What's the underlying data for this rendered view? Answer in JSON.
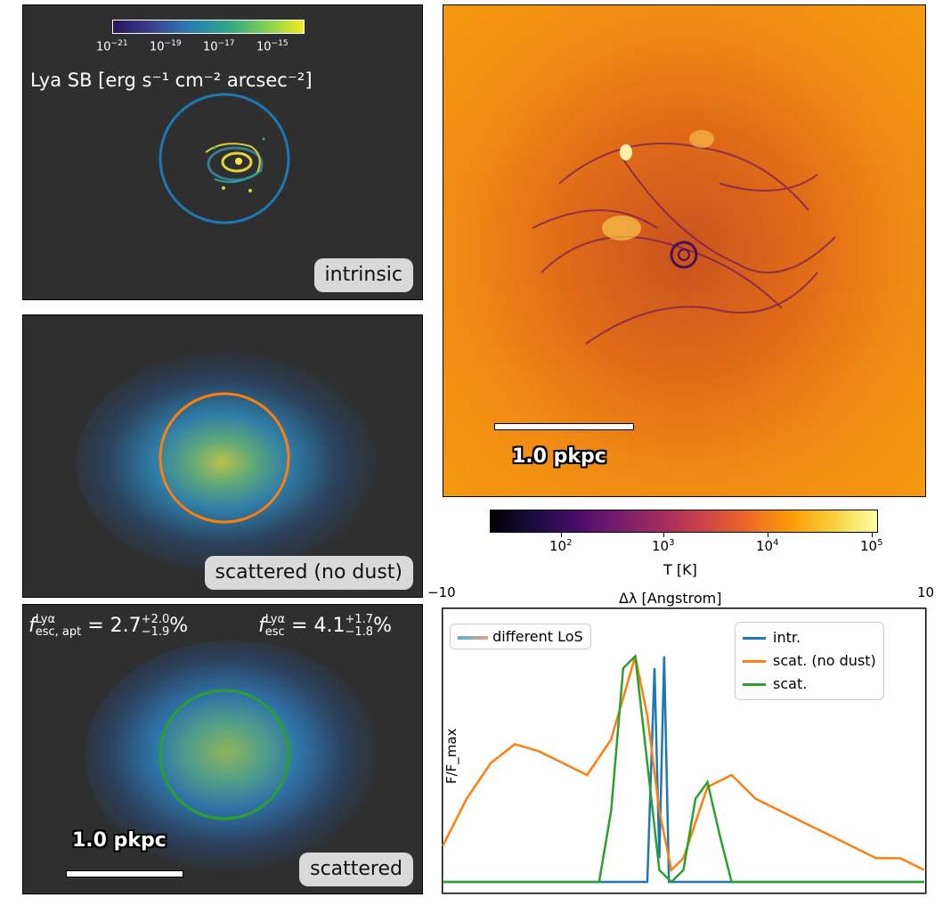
{
  "panel_intrinsic": {
    "label": "intrinsic",
    "colorbar_ticks": [
      "10",
      "10",
      "10",
      "10"
    ],
    "colorbar_exps": [
      "−21",
      "−19",
      "−17",
      "−15"
    ],
    "colorbar_title": "Lya SB [erg s⁻¹ cm⁻² arcsec⁻²]"
  },
  "panel_scattered_nodust": {
    "label": "scattered (no dust)"
  },
  "panel_scattered": {
    "label": "scattered",
    "fesc_apt": "2.7",
    "fesc_apt_up": "+2.0",
    "fesc_apt_down": "−1.9",
    "fesc": "4.1",
    "fesc_up": "+1.7",
    "fesc_down": "−1.8",
    "fesc_sym": "f",
    "fesc_sup": "Lyα",
    "fesc_apt_sub": "esc, apt",
    "fesc_sub": "esc",
    "percent": "%",
    "scale_label": "1.0 pkpc"
  },
  "temperature_map": {
    "scale_label": "1.0 pkpc",
    "colorbar_label": "T [K]",
    "colorbar_ticks": [
      "10",
      "10",
      "10",
      "10"
    ],
    "colorbar_exps": [
      "2",
      "3",
      "4",
      "5"
    ]
  },
  "colors": {
    "intr": "#1f77b4",
    "scat_nodust": "#ff7f0e",
    "scat": "#2ca02c",
    "panel_bg": "#2f2f2f"
  },
  "chart_data": {
    "type": "line",
    "title": "Δλ [Angstrom]",
    "xlabel": "Δλ [Angstrom]",
    "ylabel": "F/F_max",
    "xlim": [
      -10,
      10
    ],
    "ylim": [
      0,
      1.05
    ],
    "x_tick_labels": [
      "−10",
      "10"
    ],
    "legend_left": "different LoS",
    "legend": [
      "intr.",
      "scat. (no dust)",
      "scat."
    ],
    "series": [
      {
        "name": "intr.",
        "x": [
          -10,
          -1.5,
          -1.2,
          -1.0,
          -0.8,
          -0.6,
          10
        ],
        "values": [
          0,
          0,
          0.9,
          0.1,
          0.95,
          0,
          0
        ]
      },
      {
        "name": "scat. (no dust)",
        "x": [
          -10,
          -9,
          -8,
          -7,
          -6,
          -5,
          -4,
          -3,
          -2,
          -1.5,
          -1,
          -0.5,
          0,
          1,
          2,
          3,
          4,
          5,
          6,
          7,
          8,
          9,
          10
        ],
        "values": [
          0.15,
          0.35,
          0.5,
          0.58,
          0.55,
          0.5,
          0.45,
          0.6,
          0.95,
          0.7,
          0.3,
          0.05,
          0.1,
          0.4,
          0.45,
          0.35,
          0.3,
          0.25,
          0.2,
          0.15,
          0.1,
          0.1,
          0.05
        ]
      },
      {
        "name": "scat.",
        "x": [
          -10,
          -3.5,
          -3,
          -2.5,
          -2,
          -1.5,
          -1,
          -0.5,
          0,
          0.5,
          1,
          1.5,
          2,
          10
        ],
        "values": [
          0,
          0,
          0.3,
          0.9,
          0.95,
          0.5,
          0.05,
          0,
          0.05,
          0.35,
          0.42,
          0.2,
          0,
          0
        ]
      }
    ]
  }
}
